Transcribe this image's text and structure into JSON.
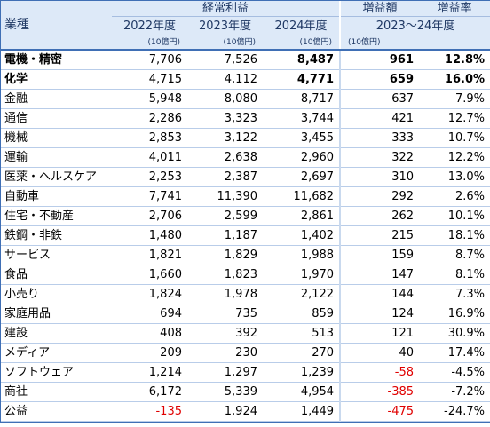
{
  "header": {
    "industry_label": "業種",
    "profit_group_label": "経常利益",
    "increase_label": "増益額",
    "rate_label": "増益率",
    "years": [
      "2022年度",
      "2023年度",
      "2024年度"
    ],
    "change_period": "2023～24年度",
    "unit": "(10億円)"
  },
  "rows": [
    {
      "industry": "電機・精密",
      "y2022": "7,706",
      "y2023": "7,526",
      "y2024": "8,487",
      "increase": "961",
      "rate": "12.8%",
      "negative": false,
      "bold": true
    },
    {
      "industry": "化学",
      "y2022": "4,715",
      "y2023": "4,112",
      "y2024": "4,771",
      "increase": "659",
      "rate": "16.0%",
      "negative": false,
      "bold": true
    },
    {
      "industry": "金融",
      "y2022": "5,948",
      "y2023": "8,080",
      "y2024": "8,717",
      "increase": "637",
      "rate": "7.9%",
      "negative": false,
      "bold": false
    },
    {
      "industry": "通信",
      "y2022": "2,286",
      "y2023": "3,323",
      "y2024": "3,744",
      "increase": "421",
      "rate": "12.7%",
      "negative": false,
      "bold": false
    },
    {
      "industry": "機械",
      "y2022": "2,853",
      "y2023": "3,122",
      "y2024": "3,455",
      "increase": "333",
      "rate": "10.7%",
      "negative": false,
      "bold": false
    },
    {
      "industry": "運輸",
      "y2022": "4,011",
      "y2023": "2,638",
      "y2024": "2,960",
      "increase": "322",
      "rate": "12.2%",
      "negative": false,
      "bold": false
    },
    {
      "industry": "医薬・ヘルスケア",
      "y2022": "2,253",
      "y2023": "2,387",
      "y2024": "2,697",
      "increase": "310",
      "rate": "13.0%",
      "negative": false,
      "bold": false
    },
    {
      "industry": "自動車",
      "y2022": "7,741",
      "y2023": "11,390",
      "y2024": "11,682",
      "increase": "292",
      "rate": "2.6%",
      "negative": false,
      "bold": false
    },
    {
      "industry": "住宅・不動産",
      "y2022": "2,706",
      "y2023": "2,599",
      "y2024": "2,861",
      "increase": "262",
      "rate": "10.1%",
      "negative": false,
      "bold": false
    },
    {
      "industry": "鉄鋼・非鉄",
      "y2022": "1,480",
      "y2023": "1,187",
      "y2024": "1,402",
      "increase": "215",
      "rate": "18.1%",
      "negative": false,
      "bold": false
    },
    {
      "industry": "サービス",
      "y2022": "1,821",
      "y2023": "1,829",
      "y2024": "1,988",
      "increase": "159",
      "rate": "8.7%",
      "negative": false,
      "bold": false
    },
    {
      "industry": "食品",
      "y2022": "1,660",
      "y2023": "1,823",
      "y2024": "1,970",
      "increase": "147",
      "rate": "8.1%",
      "negative": false,
      "bold": false
    },
    {
      "industry": "小売り",
      "y2022": "1,824",
      "y2023": "1,978",
      "y2024": "2,122",
      "increase": "144",
      "rate": "7.3%",
      "negative": false,
      "bold": false
    },
    {
      "industry": "家庭用品",
      "y2022": "694",
      "y2023": "735",
      "y2024": "859",
      "increase": "124",
      "rate": "16.9%",
      "negative": false,
      "bold": false
    },
    {
      "industry": "建設",
      "y2022": "408",
      "y2023": "392",
      "y2024": "513",
      "increase": "121",
      "rate": "30.9%",
      "negative": false,
      "bold": false
    },
    {
      "industry": "メディア",
      "y2022": "209",
      "y2023": "230",
      "y2024": "270",
      "increase": "40",
      "rate": "17.4%",
      "negative": false,
      "bold": false
    },
    {
      "industry": "ソフトウェア",
      "y2022": "1,214",
      "y2023": "1,297",
      "y2024": "1,239",
      "increase": "-58",
      "rate": "-4.5%",
      "negative": true,
      "bold": false
    },
    {
      "industry": "商社",
      "y2022": "6,172",
      "y2023": "5,339",
      "y2024": "4,954",
      "increase": "-385",
      "rate": "-7.2%",
      "negative": true,
      "bold": false
    },
    {
      "industry": "公益",
      "y2022": "-135",
      "y2023": "1,924",
      "y2024": "1,449",
      "increase": "-475",
      "rate": "-24.7%",
      "negative": true,
      "bold": false,
      "y2022_negative": true
    }
  ],
  "colors": {
    "header_bg": "#dde9f8",
    "header_text": "#1f3864",
    "negative_text": "#e00000",
    "accent_border": "#3f6fb5"
  }
}
